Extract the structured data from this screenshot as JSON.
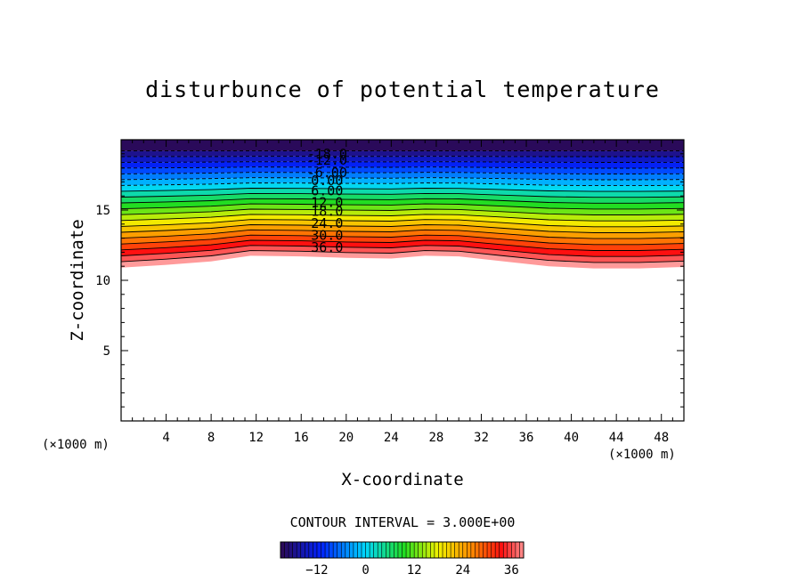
{
  "chart_data": {
    "type": "contour",
    "title": "disturbunce of potential temperature",
    "xlabel": "X-coordinate",
    "ylabel": "Z-coordinate",
    "x_unit_left": "(×1000 m)",
    "x_unit_right": "(×1000 m)",
    "xlim": [
      0,
      50
    ],
    "ylim": [
      0,
      20
    ],
    "xticks": [
      4,
      8,
      12,
      16,
      20,
      24,
      28,
      32,
      36,
      40,
      44,
      48
    ],
    "yticks": [
      5,
      10,
      15
    ],
    "contour_interval_label": "CONTOUR INTERVAL = 3.000E+00",
    "contour_interval": 3,
    "contour_labels": [
      "-18.0",
      "-12.0",
      "-6.00",
      "0.00",
      "6.00",
      "12.0",
      "18.0",
      "24.0",
      "30.0",
      "36.0"
    ],
    "contour_label_levels": [
      -18,
      -12,
      -6,
      0,
      6,
      12,
      18,
      24,
      30,
      36
    ],
    "contour_label_z": [
      19.0,
      18.55,
      17.65,
      17.1,
      16.35,
      15.55,
      14.9,
      14.05,
      13.2,
      12.35
    ],
    "levels_min": -21,
    "levels_max": 39,
    "top_z": 19.2,
    "lowest_level_profile": [
      {
        "x": 0,
        "z": 10.9
      },
      {
        "x": 4,
        "z": 11.1
      },
      {
        "x": 8,
        "z": 11.35
      },
      {
        "x": 11.5,
        "z": 11.75
      },
      {
        "x": 16,
        "z": 11.7
      },
      {
        "x": 20,
        "z": 11.6
      },
      {
        "x": 24,
        "z": 11.55
      },
      {
        "x": 27,
        "z": 11.75
      },
      {
        "x": 30,
        "z": 11.7
      },
      {
        "x": 34,
        "z": 11.35
      },
      {
        "x": 38,
        "z": 11.0
      },
      {
        "x": 42,
        "z": 10.85
      },
      {
        "x": 46,
        "z": 10.85
      },
      {
        "x": 50,
        "z": 10.95
      }
    ],
    "colorbar": {
      "ticks": [
        -12,
        0,
        12,
        24,
        36
      ],
      "tick_labels": [
        "−12",
        "0",
        "12",
        "24",
        "36"
      ],
      "range": [
        -21,
        39
      ]
    },
    "colors": {
      "violet": "#2a0a5a",
      "blue": "#0022ff",
      "cyan": "#00d8ff",
      "green": "#22dd22",
      "yellow": "#f2f200",
      "orange": "#ff8800",
      "red": "#ff1010",
      "pink": "#ff9a9a"
    }
  }
}
